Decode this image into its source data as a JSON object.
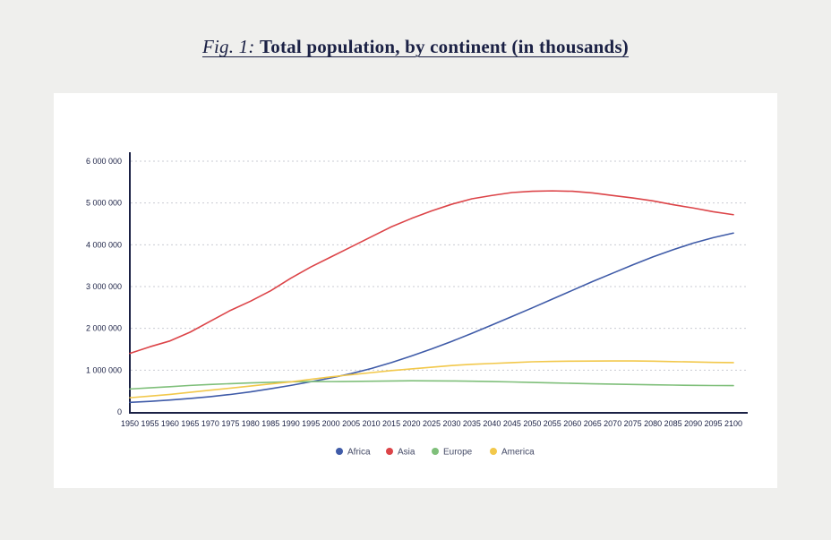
{
  "figure": {
    "prefix": "Fig. 1:",
    "title": "Total population, by continent (in thousands)"
  },
  "chart_data": {
    "type": "line",
    "title": "Total population, by continent (in thousands)",
    "xlabel": "",
    "ylabel": "",
    "ylim": [
      0,
      6000000
    ],
    "yticks": [
      0,
      1000000,
      2000000,
      3000000,
      4000000,
      5000000,
      6000000
    ],
    "ytick_labels": [
      "0",
      "1 000 000",
      "2 000 000",
      "3 000 000",
      "4 000 000",
      "5 000 000",
      "6 000 000"
    ],
    "grid": "horizontal dotted",
    "legend_position": "bottom",
    "x": [
      1950,
      1955,
      1960,
      1965,
      1970,
      1975,
      1980,
      1985,
      1990,
      1995,
      2000,
      2005,
      2010,
      2015,
      2020,
      2025,
      2030,
      2035,
      2040,
      2045,
      2050,
      2055,
      2060,
      2065,
      2070,
      2075,
      2080,
      2085,
      2090,
      2095,
      2100
    ],
    "series": [
      {
        "name": "Africa",
        "color": "#3f5ba8",
        "values": [
          228000,
          254000,
          285000,
          322000,
          366000,
          418000,
          480000,
          555000,
          635000,
          723000,
          814000,
          917000,
          1039000,
          1182000,
          1340000,
          1508000,
          1688000,
          1880000,
          2081000,
          2285000,
          2490000,
          2700000,
          2910000,
          3120000,
          3320000,
          3520000,
          3710000,
          3880000,
          4040000,
          4170000,
          4280000
        ]
      },
      {
        "name": "Asia",
        "color": "#dc4448",
        "values": [
          1400000,
          1560000,
          1700000,
          1910000,
          2170000,
          2430000,
          2650000,
          2900000,
          3200000,
          3470000,
          3710000,
          3950000,
          4190000,
          4430000,
          4630000,
          4810000,
          4970000,
          5100000,
          5180000,
          5250000,
          5280000,
          5290000,
          5280000,
          5240000,
          5180000,
          5120000,
          5050000,
          4960000,
          4880000,
          4790000,
          4720000
        ]
      },
      {
        "name": "Europe",
        "color": "#7fbf7a",
        "values": [
          549000,
          577000,
          605000,
          635000,
          657000,
          677000,
          694000,
          708000,
          721000,
          727000,
          726000,
          729000,
          736000,
          741000,
          745000,
          744000,
          741000,
          736000,
          728000,
          718000,
          706000,
          695000,
          684000,
          673000,
          665000,
          657000,
          650000,
          643000,
          636000,
          632000,
          630000
        ]
      },
      {
        "name": "America",
        "color": "#f2c84b",
        "values": [
          340000,
          380000,
          420000,
          470000,
          520000,
          570000,
          620000,
          670000,
          720000,
          780000,
          840000,
          890000,
          940000,
          990000,
          1030000,
          1070000,
          1110000,
          1140000,
          1160000,
          1180000,
          1200000,
          1210000,
          1215000,
          1218000,
          1219000,
          1220000,
          1215000,
          1205000,
          1195000,
          1185000,
          1180000
        ]
      }
    ]
  }
}
